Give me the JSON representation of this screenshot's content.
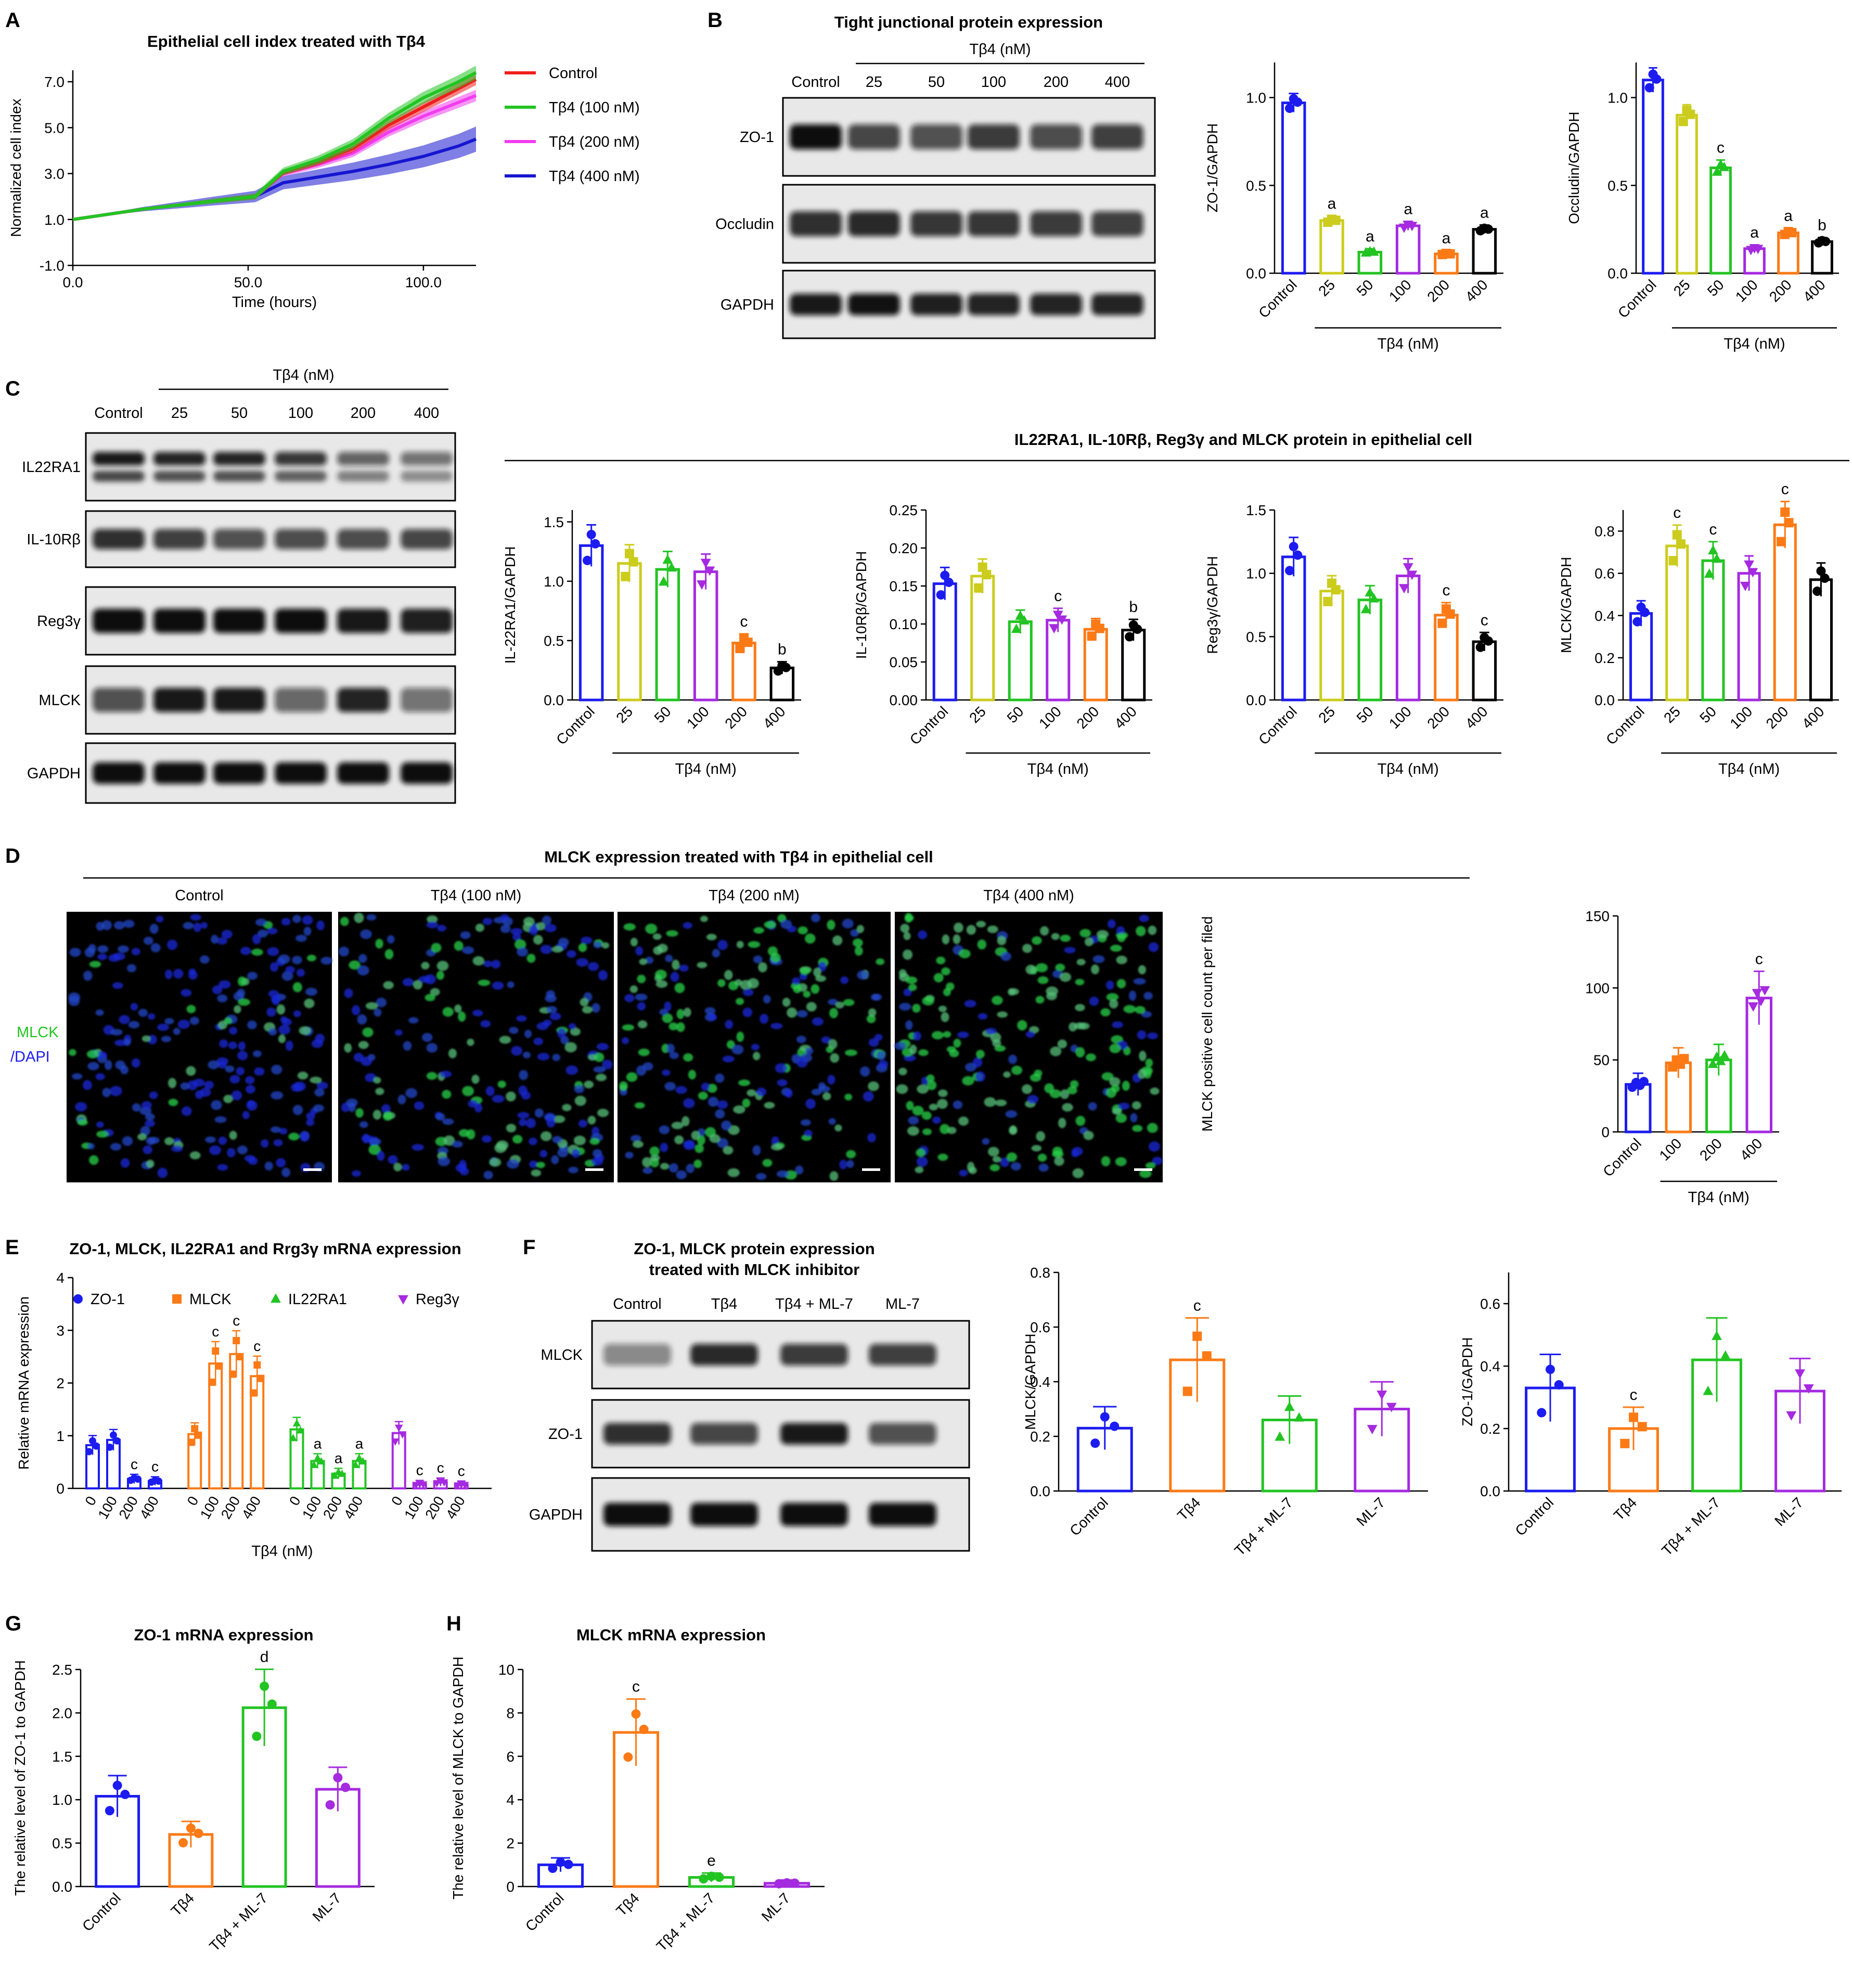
{
  "colors": {
    "blue": "#1c1cf0",
    "yellow": "#cccc1e",
    "green": "#22c422",
    "magenta": "#a52ae0",
    "orange": "#fb7a16",
    "black": "#000000",
    "red": "#f01e1e",
    "pink": "#f03cf0",
    "navy": "#1616d0"
  },
  "panels": {
    "A": {
      "letter": "A",
      "title": "Epithelial cell index treated with Tβ4",
      "xlabel": "Time (hours)",
      "ylabel": "Normalized cell index",
      "xticks": [
        "0.0",
        "50.0",
        "100.0"
      ],
      "yticks": [
        "-1.0",
        "1.0",
        "3.0",
        "5.0",
        "7.0"
      ],
      "legend": [
        "Control",
        "Tβ4 (100 nM)",
        "Tβ4 (200 nM)",
        "Tβ4 (400 nM)"
      ]
    },
    "B": {
      "letter": "B",
      "title": "Tight junctional protein expression",
      "group_label": "Tβ4 (nM)",
      "lanes": [
        "Control",
        "25",
        "50",
        "100",
        "200",
        "400"
      ],
      "blots": [
        "ZO-1",
        "Occludin",
        "GAPDH"
      ],
      "charts": [
        {
          "ylabel": "ZO-1/GAPDH",
          "yticks": [
            "0.0",
            "0.5",
            "1.0"
          ],
          "xlabel": "Tβ4 (nM)",
          "categories": [
            "Control",
            "25",
            "50",
            "100",
            "200",
            "400"
          ]
        },
        {
          "ylabel": "Occludin/GAPDH",
          "yticks": [
            "0.0",
            "0.5",
            "1.0"
          ],
          "xlabel": "Tβ4 (nM)",
          "categories": [
            "Control",
            "25",
            "50",
            "100",
            "200",
            "400"
          ]
        }
      ]
    },
    "C": {
      "letter": "C",
      "title": "IL22RA1, IL-10Rβ, Reg3γ and MLCK protein in epithelial cell",
      "group_label": "Tβ4 (nM)",
      "lanes": [
        "Control",
        "25",
        "50",
        "100",
        "200",
        "400"
      ],
      "blots": [
        "IL22RA1",
        "IL-10Rβ",
        "Reg3γ",
        "MLCK",
        "GAPDH"
      ],
      "charts": [
        {
          "ylabel": "IL-22RA1/GAPDH",
          "yticks": [
            "0.0",
            "0.5",
            "1.0",
            "1.5"
          ],
          "xlabel": "Tβ4 (nM)",
          "categories": [
            "Control",
            "25",
            "50",
            "100",
            "200",
            "400"
          ]
        },
        {
          "ylabel": "IL-10Rβ/GAPDH",
          "yticks": [
            "0.00",
            "0.05",
            "0.10",
            "0.15",
            "0.20",
            "0.25"
          ],
          "xlabel": "Tβ4 (nM)",
          "categories": [
            "Control",
            "25",
            "50",
            "100",
            "200",
            "400"
          ]
        },
        {
          "ylabel": "Reg3γ/GAPDH",
          "yticks": [
            "0.0",
            "0.5",
            "1.0",
            "1.5"
          ],
          "xlabel": "Tβ4 (nM)",
          "categories": [
            "Control",
            "25",
            "50",
            "100",
            "200",
            "400"
          ]
        },
        {
          "ylabel": "MLCK/GAPDH",
          "yticks": [
            "0.0",
            "0.2",
            "0.4",
            "0.6",
            "0.8"
          ],
          "xlabel": "Tβ4 (nM)",
          "categories": [
            "Control",
            "25",
            "50",
            "100",
            "200",
            "400"
          ]
        }
      ]
    },
    "D": {
      "letter": "D",
      "title": "MLCK expression treated with Tβ4 in epithelial cell",
      "images": [
        "Control",
        "Tβ4 (100 nM)",
        "Tβ4 (200 nM)",
        "Tβ4 (400 nM)"
      ],
      "stain_mlck": "MLCK",
      "stain_dapi": "/DAPI",
      "chart": {
        "ylabel": "MLCK positive cell count per filed",
        "yticks": [
          "0",
          "50",
          "100",
          "150"
        ],
        "xlabel": "Tβ4 (nM)",
        "categories": [
          "Control",
          "100",
          "200",
          "400"
        ]
      }
    },
    "E": {
      "letter": "E",
      "title": "ZO-1, MLCK, IL22RA1 and Rrg3γ mRNA expression",
      "ylabel": "Relative mRNA expression",
      "xlabel": "Tβ4 (nM)",
      "yticks": [
        "0",
        "1",
        "2",
        "3",
        "4"
      ],
      "legend": [
        "ZO-1",
        "MLCK",
        "IL22RA1",
        "Reg3γ"
      ],
      "dose_labels": [
        "0",
        "100",
        "200",
        "400"
      ]
    },
    "F": {
      "letter": "F",
      "title_line1": "ZO-1, MLCK protein expression",
      "title_line2": "treated with MLCK inhibitor",
      "lanes": [
        "Control",
        "Tβ4",
        "Tβ4 + ML-7",
        "ML-7"
      ],
      "blots": [
        "MLCK",
        "ZO-1",
        "GAPDH"
      ],
      "charts": [
        {
          "ylabel": "MLCK/GAPDH",
          "yticks": [
            "0.0",
            "0.2",
            "0.4",
            "0.6",
            "0.8"
          ],
          "categories": [
            "Control",
            "Tβ4",
            "Tβ4 + ML-7",
            "ML-7"
          ]
        },
        {
          "ylabel": "ZO-1/GAPDH",
          "yticks": [
            "0.0",
            "0.2",
            "0.4",
            "0.6"
          ],
          "categories": [
            "Control",
            "Tβ4",
            "Tβ4 + ML-7",
            "ML-7"
          ]
        }
      ]
    },
    "G": {
      "letter": "G",
      "title": "ZO-1 mRNA expression",
      "ylabel": "The relative level of ZO-1 to GAPDH",
      "yticks": [
        "0.0",
        "0.5",
        "1.0",
        "1.5",
        "2.0",
        "2.5"
      ],
      "categories": [
        "Control",
        "Tβ4",
        "Tβ4 + ML-7",
        "ML-7"
      ]
    },
    "H": {
      "letter": "H",
      "title": "MLCK mRNA expression",
      "ylabel": "The relative level of MLCK to GAPDH",
      "yticks": [
        "0",
        "2",
        "4",
        "6",
        "8",
        "10"
      ],
      "categories": [
        "Control",
        "Tβ4",
        "Tβ4 + ML-7",
        "ML-7"
      ]
    }
  },
  "chart_data": [
    {
      "id": "A",
      "type": "line",
      "title": "Epithelial cell index treated with Tβ4",
      "xlabel": "Time (hours)",
      "ylabel": "Normalized cell index",
      "xlim": [
        0,
        115
      ],
      "ylim": [
        -1,
        7.5
      ],
      "series": [
        {
          "name": "Control",
          "x": [
            0,
            20,
            40,
            52,
            60,
            70,
            80,
            90,
            100,
            110,
            115
          ],
          "y": [
            1.0,
            1.45,
            1.8,
            2.0,
            3.05,
            3.5,
            4.1,
            5.1,
            5.9,
            6.7,
            7.1
          ]
        },
        {
          "name": "Tβ4 (100 nM)",
          "x": [
            0,
            20,
            40,
            52,
            60,
            70,
            80,
            90,
            100,
            110,
            115
          ],
          "y": [
            1.0,
            1.45,
            1.8,
            2.0,
            3.1,
            3.6,
            4.3,
            5.4,
            6.3,
            7.0,
            7.4
          ]
        },
        {
          "name": "Tβ4 (200 nM)",
          "x": [
            0,
            20,
            40,
            52,
            60,
            70,
            80,
            90,
            100,
            110,
            115
          ],
          "y": [
            1.0,
            1.45,
            1.8,
            2.0,
            3.0,
            3.4,
            3.9,
            4.8,
            5.5,
            6.1,
            6.4
          ]
        },
        {
          "name": "Tβ4 (400 nM)",
          "x": [
            0,
            20,
            40,
            52,
            60,
            70,
            80,
            90,
            100,
            110,
            115
          ],
          "y": [
            1.0,
            1.45,
            1.8,
            2.0,
            2.6,
            2.85,
            3.1,
            3.4,
            3.75,
            4.2,
            4.5
          ]
        }
      ]
    },
    {
      "id": "B1",
      "type": "bar",
      "ylabel": "ZO-1/GAPDH",
      "ylim": [
        0,
        1.2
      ],
      "categories": [
        "Control",
        "25",
        "50",
        "100",
        "200",
        "400"
      ],
      "values": [
        0.97,
        0.3,
        0.12,
        0.27,
        0.11,
        0.25
      ],
      "sig": [
        "",
        "a",
        "a",
        "a",
        "a",
        "a"
      ]
    },
    {
      "id": "B2",
      "type": "bar",
      "ylabel": "Occludin/GAPDH",
      "ylim": [
        0,
        1.2
      ],
      "categories": [
        "Control",
        "25",
        "50",
        "100",
        "200",
        "400"
      ],
      "values": [
        1.1,
        0.9,
        0.6,
        0.14,
        0.23,
        0.18
      ],
      "sig": [
        "",
        "",
        "c",
        "a",
        "a",
        "b"
      ]
    },
    {
      "id": "C1",
      "type": "bar",
      "ylabel": "IL-22RA1/GAPDH",
      "ylim": [
        0,
        1.6
      ],
      "categories": [
        "Control",
        "25",
        "50",
        "100",
        "200",
        "400"
      ],
      "values": [
        1.3,
        1.15,
        1.1,
        1.08,
        0.48,
        0.27
      ],
      "sig": [
        "",
        "",
        "",
        "",
        "c",
        "b"
      ]
    },
    {
      "id": "C2",
      "type": "bar",
      "ylabel": "IL-10Rβ/GAPDH",
      "ylim": [
        0,
        0.25
      ],
      "categories": [
        "Control",
        "25",
        "50",
        "100",
        "200",
        "400"
      ],
      "values": [
        0.153,
        0.163,
        0.103,
        0.105,
        0.093,
        0.092
      ],
      "sig": [
        "",
        "",
        "",
        "c",
        "",
        "b"
      ]
    },
    {
      "id": "C3",
      "type": "bar",
      "ylabel": "Reg3γ/GAPDH",
      "ylim": [
        0,
        1.5
      ],
      "categories": [
        "Control",
        "25",
        "50",
        "100",
        "200",
        "400"
      ],
      "values": [
        1.13,
        0.86,
        0.79,
        0.98,
        0.67,
        0.46
      ],
      "sig": [
        "",
        "",
        "",
        "",
        "c",
        "c"
      ]
    },
    {
      "id": "C4",
      "type": "bar",
      "ylabel": "MLCK/GAPDH",
      "ylim": [
        0,
        0.9
      ],
      "categories": [
        "Control",
        "25",
        "50",
        "100",
        "200",
        "400"
      ],
      "values": [
        0.41,
        0.73,
        0.66,
        0.6,
        0.83,
        0.57
      ],
      "sig": [
        "",
        "c",
        "c",
        "",
        "c",
        ""
      ]
    },
    {
      "id": "D",
      "type": "bar",
      "ylabel": "MLCK positive cell count per filed",
      "ylim": [
        0,
        150
      ],
      "categories": [
        "Control",
        "100",
        "200",
        "400"
      ],
      "values": [
        33,
        48,
        50,
        93
      ],
      "sig": [
        "",
        "",
        "",
        "c"
      ]
    },
    {
      "id": "E",
      "type": "bar",
      "ylabel": "Relative mRNA expression",
      "xlabel": "Tβ4 (nM)",
      "ylim": [
        0,
        4
      ],
      "categories": [
        "0",
        "100",
        "200",
        "400"
      ],
      "series": [
        {
          "name": "ZO-1",
          "values": [
            0.82,
            0.92,
            0.18,
            0.14
          ],
          "sig": [
            "",
            "",
            "c",
            "c"
          ]
        },
        {
          "name": "MLCK",
          "values": [
            1.03,
            2.37,
            2.55,
            2.13
          ],
          "sig": [
            "",
            "c",
            "c",
            "c"
          ]
        },
        {
          "name": "IL22RA1",
          "values": [
            1.12,
            0.52,
            0.28,
            0.52
          ],
          "sig": [
            "",
            "a",
            "a",
            "a"
          ]
        },
        {
          "name": "Reg3γ",
          "values": [
            1.05,
            0.08,
            0.12,
            0.07
          ],
          "sig": [
            "",
            "c",
            "c",
            "c"
          ]
        }
      ]
    },
    {
      "id": "F1",
      "type": "bar",
      "ylabel": "MLCK/GAPDH",
      "ylim": [
        0,
        0.8
      ],
      "categories": [
        "Control",
        "Tβ4",
        "Tβ4 + ML-7",
        "ML-7"
      ],
      "values": [
        0.23,
        0.48,
        0.26,
        0.3
      ],
      "sig": [
        "",
        "c",
        "",
        ""
      ]
    },
    {
      "id": "F2",
      "type": "bar",
      "ylabel": "ZO-1/GAPDH",
      "ylim": [
        0,
        0.7
      ],
      "categories": [
        "Control",
        "Tβ4",
        "Tβ4 + ML-7",
        "ML-7"
      ],
      "values": [
        0.33,
        0.2,
        0.42,
        0.32
      ],
      "sig": [
        "",
        "c",
        "",
        ""
      ]
    },
    {
      "id": "G",
      "type": "bar",
      "title": "ZO-1 mRNA expression",
      "ylabel": "The relative level of ZO-1 to GAPDH",
      "ylim": [
        0,
        2.5
      ],
      "categories": [
        "Control",
        "Tβ4",
        "Tβ4 + ML-7",
        "ML-7"
      ],
      "values": [
        1.04,
        0.6,
        2.06,
        1.12
      ],
      "sig": [
        "",
        "",
        "d",
        ""
      ]
    },
    {
      "id": "H",
      "type": "bar",
      "title": "MLCK mRNA expression",
      "ylabel": "The relative level of MLCK to GAPDH",
      "ylim": [
        0,
        10
      ],
      "categories": [
        "Control",
        "Tβ4",
        "Tβ4 + ML-7",
        "ML-7"
      ],
      "values": [
        1.0,
        7.1,
        0.42,
        0.15
      ],
      "sig": [
        "",
        "c",
        "e",
        ""
      ]
    }
  ]
}
